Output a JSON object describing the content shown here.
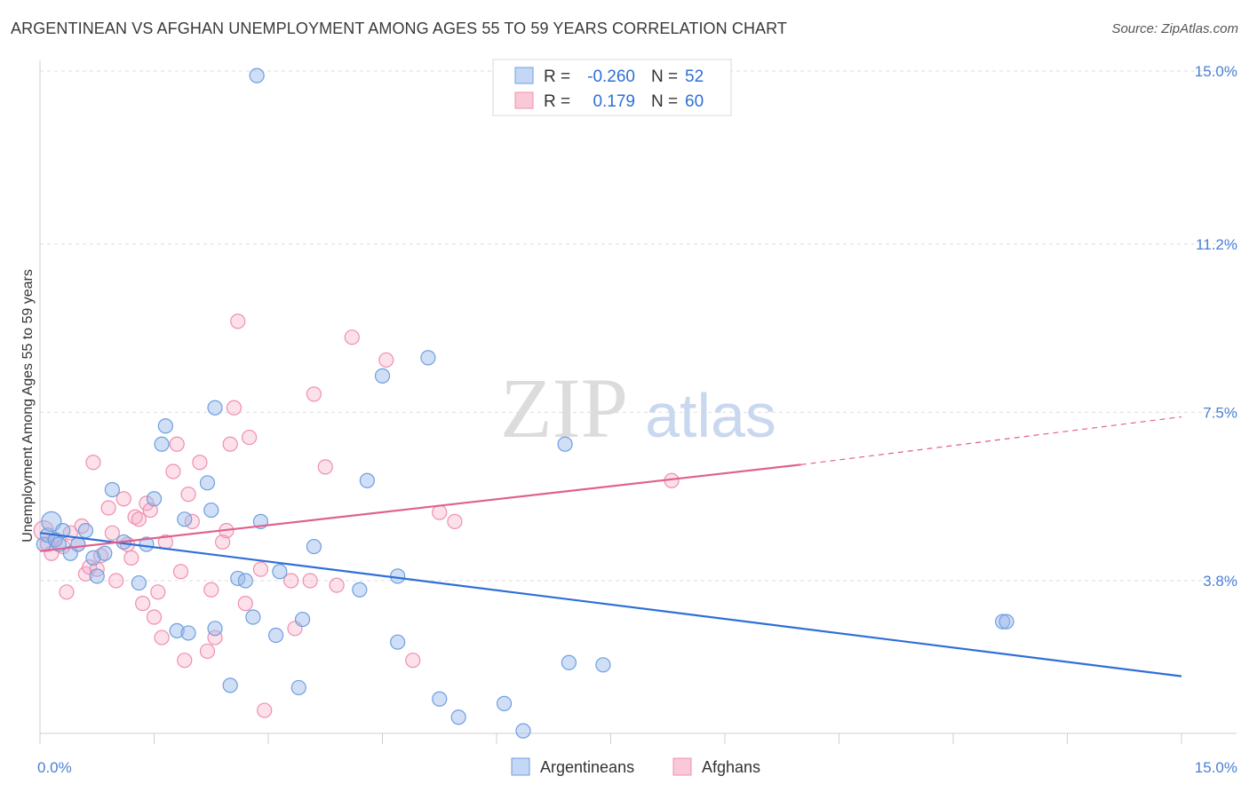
{
  "title": "ARGENTINEAN VS AFGHAN UNEMPLOYMENT AMONG AGES 55 TO 59 YEARS CORRELATION CHART",
  "source": "Source: ZipAtlas.com",
  "watermark": {
    "zip": "ZIP",
    "atlas": "atlas"
  },
  "legend": {
    "rows": [
      {
        "r_label": "R =",
        "r_value": "-0.260",
        "n_label": "N =",
        "n_value": "52"
      },
      {
        "r_label": "R =",
        "r_value": "0.179",
        "n_label": "N =",
        "n_value": "60"
      }
    ]
  },
  "bottom_legend": {
    "series1": "Argentineans",
    "series2": "Afghans"
  },
  "chart_data": {
    "type": "scatter",
    "title": "ARGENTINEAN VS AFGHAN UNEMPLOYMENT AMONG AGES 55 TO 59 YEARS CORRELATION CHART",
    "xlabel": "",
    "ylabel": "Unemployment Among Ages 55 to 59 years",
    "xlim": [
      0,
      15
    ],
    "ylim": [
      0,
      15.5
    ],
    "x_tick_labels": [
      "0.0%",
      "15.0%"
    ],
    "y_ticks": [
      3.8,
      7.5,
      11.2,
      15.0
    ],
    "y_tick_labels": [
      "3.8%",
      "7.5%",
      "11.2%",
      "15.0%"
    ],
    "grid": true,
    "colors": {
      "Argentineans": "#6e9fe0",
      "Afghans": "#ef8fb0",
      "blue_line": "#2f6fd6",
      "pink_line": "#e0608f"
    },
    "series": [
      {
        "name": "Argentineans",
        "r": -0.26,
        "n": 52,
        "trend": {
          "x0": 0.0,
          "y0": 4.85,
          "x1": 15.0,
          "y1": 1.7
        },
        "points": [
          [
            0.05,
            4.6
          ],
          [
            0.1,
            4.8
          ],
          [
            0.15,
            5.1
          ],
          [
            0.2,
            4.7
          ],
          [
            0.25,
            4.6
          ],
          [
            0.3,
            4.9
          ],
          [
            0.4,
            4.4
          ],
          [
            0.5,
            4.6
          ],
          [
            0.6,
            4.9
          ],
          [
            0.7,
            4.3
          ],
          [
            0.75,
            3.9
          ],
          [
            0.85,
            4.4
          ],
          [
            0.95,
            5.8
          ],
          [
            1.1,
            4.65
          ],
          [
            1.3,
            3.75
          ],
          [
            1.4,
            4.6
          ],
          [
            1.5,
            5.6
          ],
          [
            1.6,
            6.8
          ],
          [
            1.65,
            7.2
          ],
          [
            1.8,
            2.7
          ],
          [
            1.9,
            5.15
          ],
          [
            1.95,
            2.65
          ],
          [
            2.2,
            5.95
          ],
          [
            2.25,
            5.35
          ],
          [
            2.3,
            2.75
          ],
          [
            2.3,
            7.6
          ],
          [
            2.5,
            1.5
          ],
          [
            2.6,
            3.85
          ],
          [
            2.7,
            3.8
          ],
          [
            2.8,
            3.0
          ],
          [
            2.85,
            14.9
          ],
          [
            2.9,
            5.1
          ],
          [
            3.1,
            2.6
          ],
          [
            3.15,
            4.0
          ],
          [
            3.4,
            1.45
          ],
          [
            3.45,
            2.95
          ],
          [
            3.6,
            4.55
          ],
          [
            4.2,
            3.6
          ],
          [
            4.3,
            6.0
          ],
          [
            4.5,
            8.3
          ],
          [
            4.7,
            2.45
          ],
          [
            4.7,
            3.9
          ],
          [
            5.1,
            8.7
          ],
          [
            5.25,
            1.2
          ],
          [
            5.5,
            0.8
          ],
          [
            6.1,
            1.1
          ],
          [
            6.35,
            0.5
          ],
          [
            6.9,
            6.8
          ],
          [
            6.95,
            2.0
          ],
          [
            7.4,
            1.95
          ],
          [
            12.65,
            2.9
          ],
          [
            12.7,
            2.9
          ]
        ]
      },
      {
        "name": "Afghans",
        "r": 0.179,
        "n": 60,
        "trend": {
          "x0": 0.0,
          "y0": 4.45,
          "x1": 10.0,
          "y1": 6.35,
          "dashed_x1": 15.0,
          "dashed_y1": 7.4
        },
        "points": [
          [
            0.05,
            4.9
          ],
          [
            0.1,
            4.6
          ],
          [
            0.15,
            4.4
          ],
          [
            0.2,
            4.7
          ],
          [
            0.3,
            4.55
          ],
          [
            0.35,
            3.55
          ],
          [
            0.4,
            4.85
          ],
          [
            0.5,
            4.6
          ],
          [
            0.55,
            5.0
          ],
          [
            0.6,
            3.95
          ],
          [
            0.65,
            4.1
          ],
          [
            0.7,
            6.4
          ],
          [
            0.75,
            4.05
          ],
          [
            0.8,
            4.35
          ],
          [
            0.9,
            5.4
          ],
          [
            0.95,
            4.85
          ],
          [
            1.0,
            3.8
          ],
          [
            1.1,
            5.6
          ],
          [
            1.15,
            4.6
          ],
          [
            1.2,
            4.3
          ],
          [
            1.25,
            5.2
          ],
          [
            1.3,
            5.15
          ],
          [
            1.35,
            3.3
          ],
          [
            1.4,
            5.5
          ],
          [
            1.45,
            5.35
          ],
          [
            1.5,
            3.0
          ],
          [
            1.55,
            3.55
          ],
          [
            1.6,
            2.55
          ],
          [
            1.65,
            4.65
          ],
          [
            1.75,
            6.2
          ],
          [
            1.8,
            6.8
          ],
          [
            1.85,
            4.0
          ],
          [
            1.9,
            2.05
          ],
          [
            1.95,
            5.7
          ],
          [
            2.0,
            5.1
          ],
          [
            2.1,
            6.4
          ],
          [
            2.2,
            2.25
          ],
          [
            2.25,
            3.6
          ],
          [
            2.3,
            2.55
          ],
          [
            2.4,
            4.65
          ],
          [
            2.45,
            4.9
          ],
          [
            2.5,
            6.8
          ],
          [
            2.55,
            7.6
          ],
          [
            2.6,
            9.5
          ],
          [
            2.7,
            3.3
          ],
          [
            2.75,
            6.95
          ],
          [
            2.9,
            4.05
          ],
          [
            2.95,
            0.95
          ],
          [
            3.3,
            3.8
          ],
          [
            3.35,
            2.75
          ],
          [
            3.55,
            3.8
          ],
          [
            3.6,
            7.9
          ],
          [
            3.75,
            6.3
          ],
          [
            3.9,
            3.7
          ],
          [
            4.1,
            9.15
          ],
          [
            4.55,
            8.65
          ],
          [
            4.9,
            2.05
          ],
          [
            5.25,
            5.3
          ],
          [
            5.45,
            5.1
          ],
          [
            8.3,
            6.0
          ]
        ]
      }
    ]
  }
}
